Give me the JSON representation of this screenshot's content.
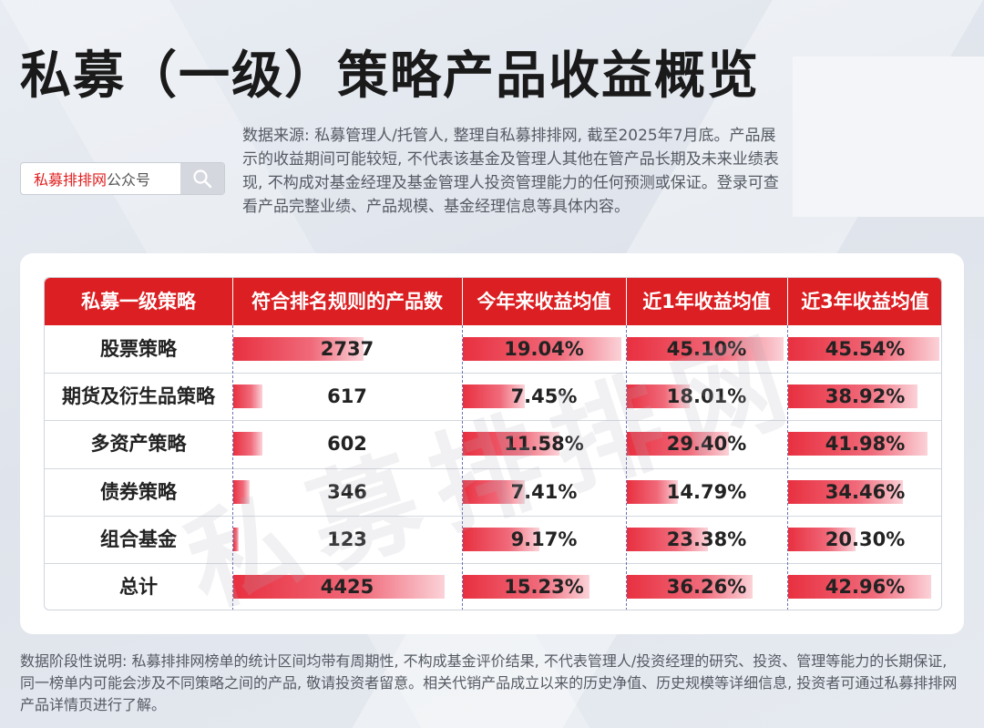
{
  "title": "私募（一级）策略产品收益概览",
  "source_note": "数据来源: 私募管理人/托管人, 整理自私募排排网, 截至2025年7月底。产品展示的收益期间可能较短, 不代表该基金及管理人其他在管产品长期及未来业绩表现, 不构成对基金经理及基金管理人投资管理能力的任何预测或保证。登录可查看产品完整业绩、产品规模、基金经理信息等具体内容。",
  "search": {
    "brand": "私募排排网",
    "suffix": "公众号",
    "icon": "search-icon"
  },
  "watermark": "私募排排网",
  "table": {
    "headers": [
      "私募一级策略",
      "符合排名规则的产品数",
      "今年来收益均值",
      "近1年收益均值",
      "近3年收益均值"
    ],
    "rows": [
      {
        "strategy": "股票策略",
        "count": "2737",
        "ytd": "19.04%",
        "y1": "45.10%",
        "y3": "45.54%"
      },
      {
        "strategy": "期货及衍生品策略",
        "count": "617",
        "ytd": "7.45%",
        "y1": "18.01%",
        "y3": "38.92%"
      },
      {
        "strategy": "多资产策略",
        "count": "602",
        "ytd": "11.58%",
        "y1": "29.40%",
        "y3": "41.98%"
      },
      {
        "strategy": "债券策略",
        "count": "346",
        "ytd": "7.41%",
        "y1": "14.79%",
        "y3": "34.46%"
      },
      {
        "strategy": "组合基金",
        "count": "123",
        "ytd": "9.17%",
        "y1": "23.38%",
        "y3": "20.30%"
      },
      {
        "strategy": "总计",
        "count": "4425",
        "ytd": "15.23%",
        "y1": "36.26%",
        "y3": "42.96%"
      }
    ],
    "bar_values": {
      "count": [
        2737,
        617,
        602,
        346,
        123,
        4425
      ],
      "ytd": [
        19.04,
        7.45,
        11.58,
        7.41,
        9.17,
        15.23
      ],
      "y1": [
        45.1,
        18.01,
        29.4,
        14.79,
        23.38,
        36.26
      ],
      "y3": [
        45.54,
        38.92,
        41.98,
        34.46,
        20.3,
        42.96
      ]
    }
  },
  "footnote": "数据阶段性说明: 私募排排网榜单的统计区间均带有周期性, 不构成基金评价结果, 不代表管理人/投资经理的研究、投资、管理等能力的长期保证, 同一榜单内可能会涉及不同策略之间的产品, 敬请投资者留意。相关代销产品成立以来的历史净值、历史规模等详细信息, 投资者可通过私募排排网产品详情页进行了解。",
  "colors": {
    "header": "#dc1f22",
    "bar": "#e83040",
    "accent": "#e02020"
  }
}
